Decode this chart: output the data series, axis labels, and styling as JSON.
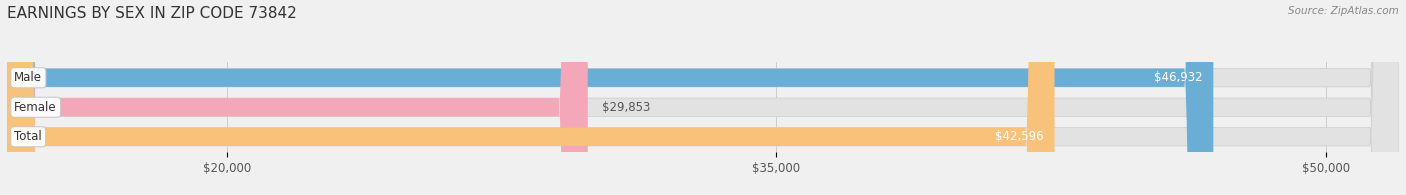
{
  "title": "EARNINGS BY SEX IN ZIP CODE 73842",
  "source": "Source: ZipAtlas.com",
  "categories": [
    "Male",
    "Female",
    "Total"
  ],
  "values": [
    46932,
    29853,
    42596
  ],
  "bar_colors": [
    "#6aaed6",
    "#f4a7b9",
    "#f9c27a"
  ],
  "value_labels": [
    "$46,932",
    "$29,853",
    "$42,596"
  ],
  "value_label_colors": [
    "white",
    "#666666",
    "white"
  ],
  "xlim_left": 14000,
  "xlim_right": 52000,
  "xticks": [
    20000,
    35000,
    50000
  ],
  "xtick_labels": [
    "$20,000",
    "$35,000",
    "$50,000"
  ],
  "background_color": "#f0f0f0",
  "bar_bg_color": "#e2e2e2",
  "bar_border_color": "#d0d0d0",
  "title_fontsize": 11,
  "source_fontsize": 7.5,
  "bar_height": 0.62,
  "bar_rounding": 800,
  "label_tag_color": "#f0f0f0",
  "label_tag_border": "#c8c8c8"
}
